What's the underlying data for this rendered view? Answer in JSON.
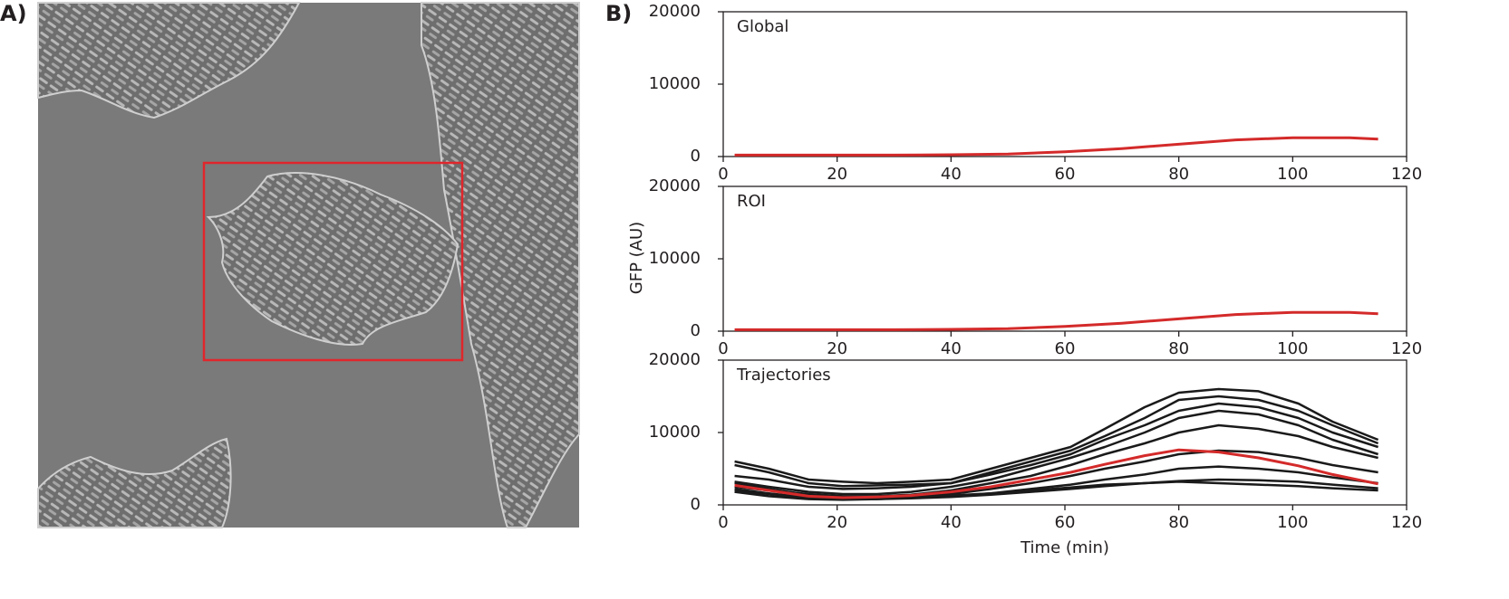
{
  "panel_labels": [
    "A)",
    "B)"
  ],
  "y_label": "GFP (AU)",
  "chart_data": [
    {
      "type": "line",
      "title": "Global",
      "x": [
        2,
        10,
        20,
        30,
        40,
        50,
        60,
        70,
        80,
        90,
        100,
        110,
        115
      ],
      "series": [
        {
          "color": "#d42a2a",
          "values": [
            200,
            200,
            200,
            200,
            250,
            350,
            650,
            1100,
            1700,
            2300,
            2600,
            2600,
            2400
          ]
        }
      ],
      "xlim": [
        0,
        120
      ],
      "ylim": [
        0,
        20000
      ],
      "xticks": [
        0,
        20,
        40,
        60,
        80,
        100,
        120
      ],
      "yticks": [
        0,
        10000,
        20000
      ]
    },
    {
      "type": "line",
      "title": "ROI",
      "x": [
        2,
        10,
        20,
        30,
        40,
        50,
        60,
        70,
        80,
        90,
        100,
        110,
        115
      ],
      "series": [
        {
          "color": "#d42a2a",
          "values": [
            200,
            200,
            200,
            200,
            250,
            350,
            650,
            1100,
            1700,
            2300,
            2600,
            2600,
            2400
          ]
        }
      ],
      "xlim": [
        0,
        120
      ],
      "ylim": [
        0,
        20000
      ],
      "xticks": [
        0,
        20,
        40,
        60,
        80,
        100,
        120
      ],
      "yticks": [
        0,
        10000,
        20000
      ]
    },
    {
      "type": "line",
      "title": "Trajectories",
      "x_label": "Time (min)",
      "x": [
        2,
        8,
        15,
        21,
        27,
        33,
        40,
        47,
        54,
        61,
        67,
        74,
        80,
        87,
        94,
        101,
        107,
        115
      ],
      "series": [
        {
          "color": "#1a1a1a",
          "values": [
            6000,
            5000,
            3500,
            3200,
            3000,
            3200,
            3500,
            5000,
            6500,
            8000,
            10500,
            13500,
            15500,
            16000,
            15700,
            14000,
            11500,
            9000
          ]
        },
        {
          "color": "#1a1a1a",
          "values": [
            5500,
            4500,
            3000,
            2600,
            2700,
            2800,
            3000,
            4500,
            6000,
            7500,
            9500,
            12000,
            14500,
            15000,
            14500,
            13000,
            11000,
            8500
          ]
        },
        {
          "color": "#1a1a1a",
          "values": [
            4000,
            3500,
            2500,
            2200,
            2300,
            2500,
            3000,
            4200,
            5500,
            7000,
            9000,
            11000,
            13000,
            14000,
            13500,
            12000,
            10000,
            8000
          ]
        },
        {
          "color": "#1a1a1a",
          "values": [
            3200,
            2500,
            1800,
            1500,
            1500,
            1800,
            2500,
            3500,
            5000,
            6500,
            8000,
            10000,
            12000,
            13000,
            12500,
            11000,
            9000,
            7000
          ]
        },
        {
          "color": "#1a1a1a",
          "values": [
            2500,
            2000,
            1500,
            1200,
            1200,
            1400,
            2000,
            3000,
            4000,
            5500,
            7000,
            8500,
            10000,
            11000,
            10500,
            9500,
            8000,
            6500
          ]
        },
        {
          "color": "#1a1a1a",
          "values": [
            2000,
            1500,
            1000,
            900,
            1000,
            1200,
            1500,
            2200,
            3000,
            4000,
            5000,
            6000,
            7000,
            7500,
            7300,
            6500,
            5500,
            4500
          ]
        },
        {
          "color": "#1a1a1a",
          "values": [
            1800,
            1200,
            800,
            700,
            800,
            1000,
            1200,
            1600,
            2200,
            2800,
            3500,
            4200,
            5000,
            5300,
            5000,
            4500,
            3800,
            3000
          ]
        },
        {
          "color": "#1a1a1a",
          "values": [
            2200,
            1600,
            1000,
            800,
            800,
            900,
            1100,
            1400,
            1800,
            2200,
            2600,
            3000,
            3300,
            3500,
            3400,
            3200,
            2800,
            2300
          ]
        },
        {
          "color": "#1a1a1a",
          "values": [
            3000,
            2200,
            1400,
            1100,
            1000,
            1100,
            1300,
            1600,
            2000,
            2400,
            2800,
            3000,
            3200,
            3000,
            2800,
            2600,
            2300,
            2000
          ]
        },
        {
          "color": "#d42a2a",
          "values": [
            2700,
            2000,
            1200,
            1000,
            1100,
            1300,
            1800,
            2500,
            3500,
            4500,
            5600,
            6800,
            7600,
            7300,
            6500,
            5400,
            4200,
            2900
          ]
        }
      ],
      "xlim": [
        0,
        120
      ],
      "ylim": [
        0,
        20000
      ],
      "xticks": [
        0,
        20,
        40,
        60,
        80,
        100,
        120
      ],
      "yticks": [
        0,
        10000,
        20000
      ]
    }
  ]
}
